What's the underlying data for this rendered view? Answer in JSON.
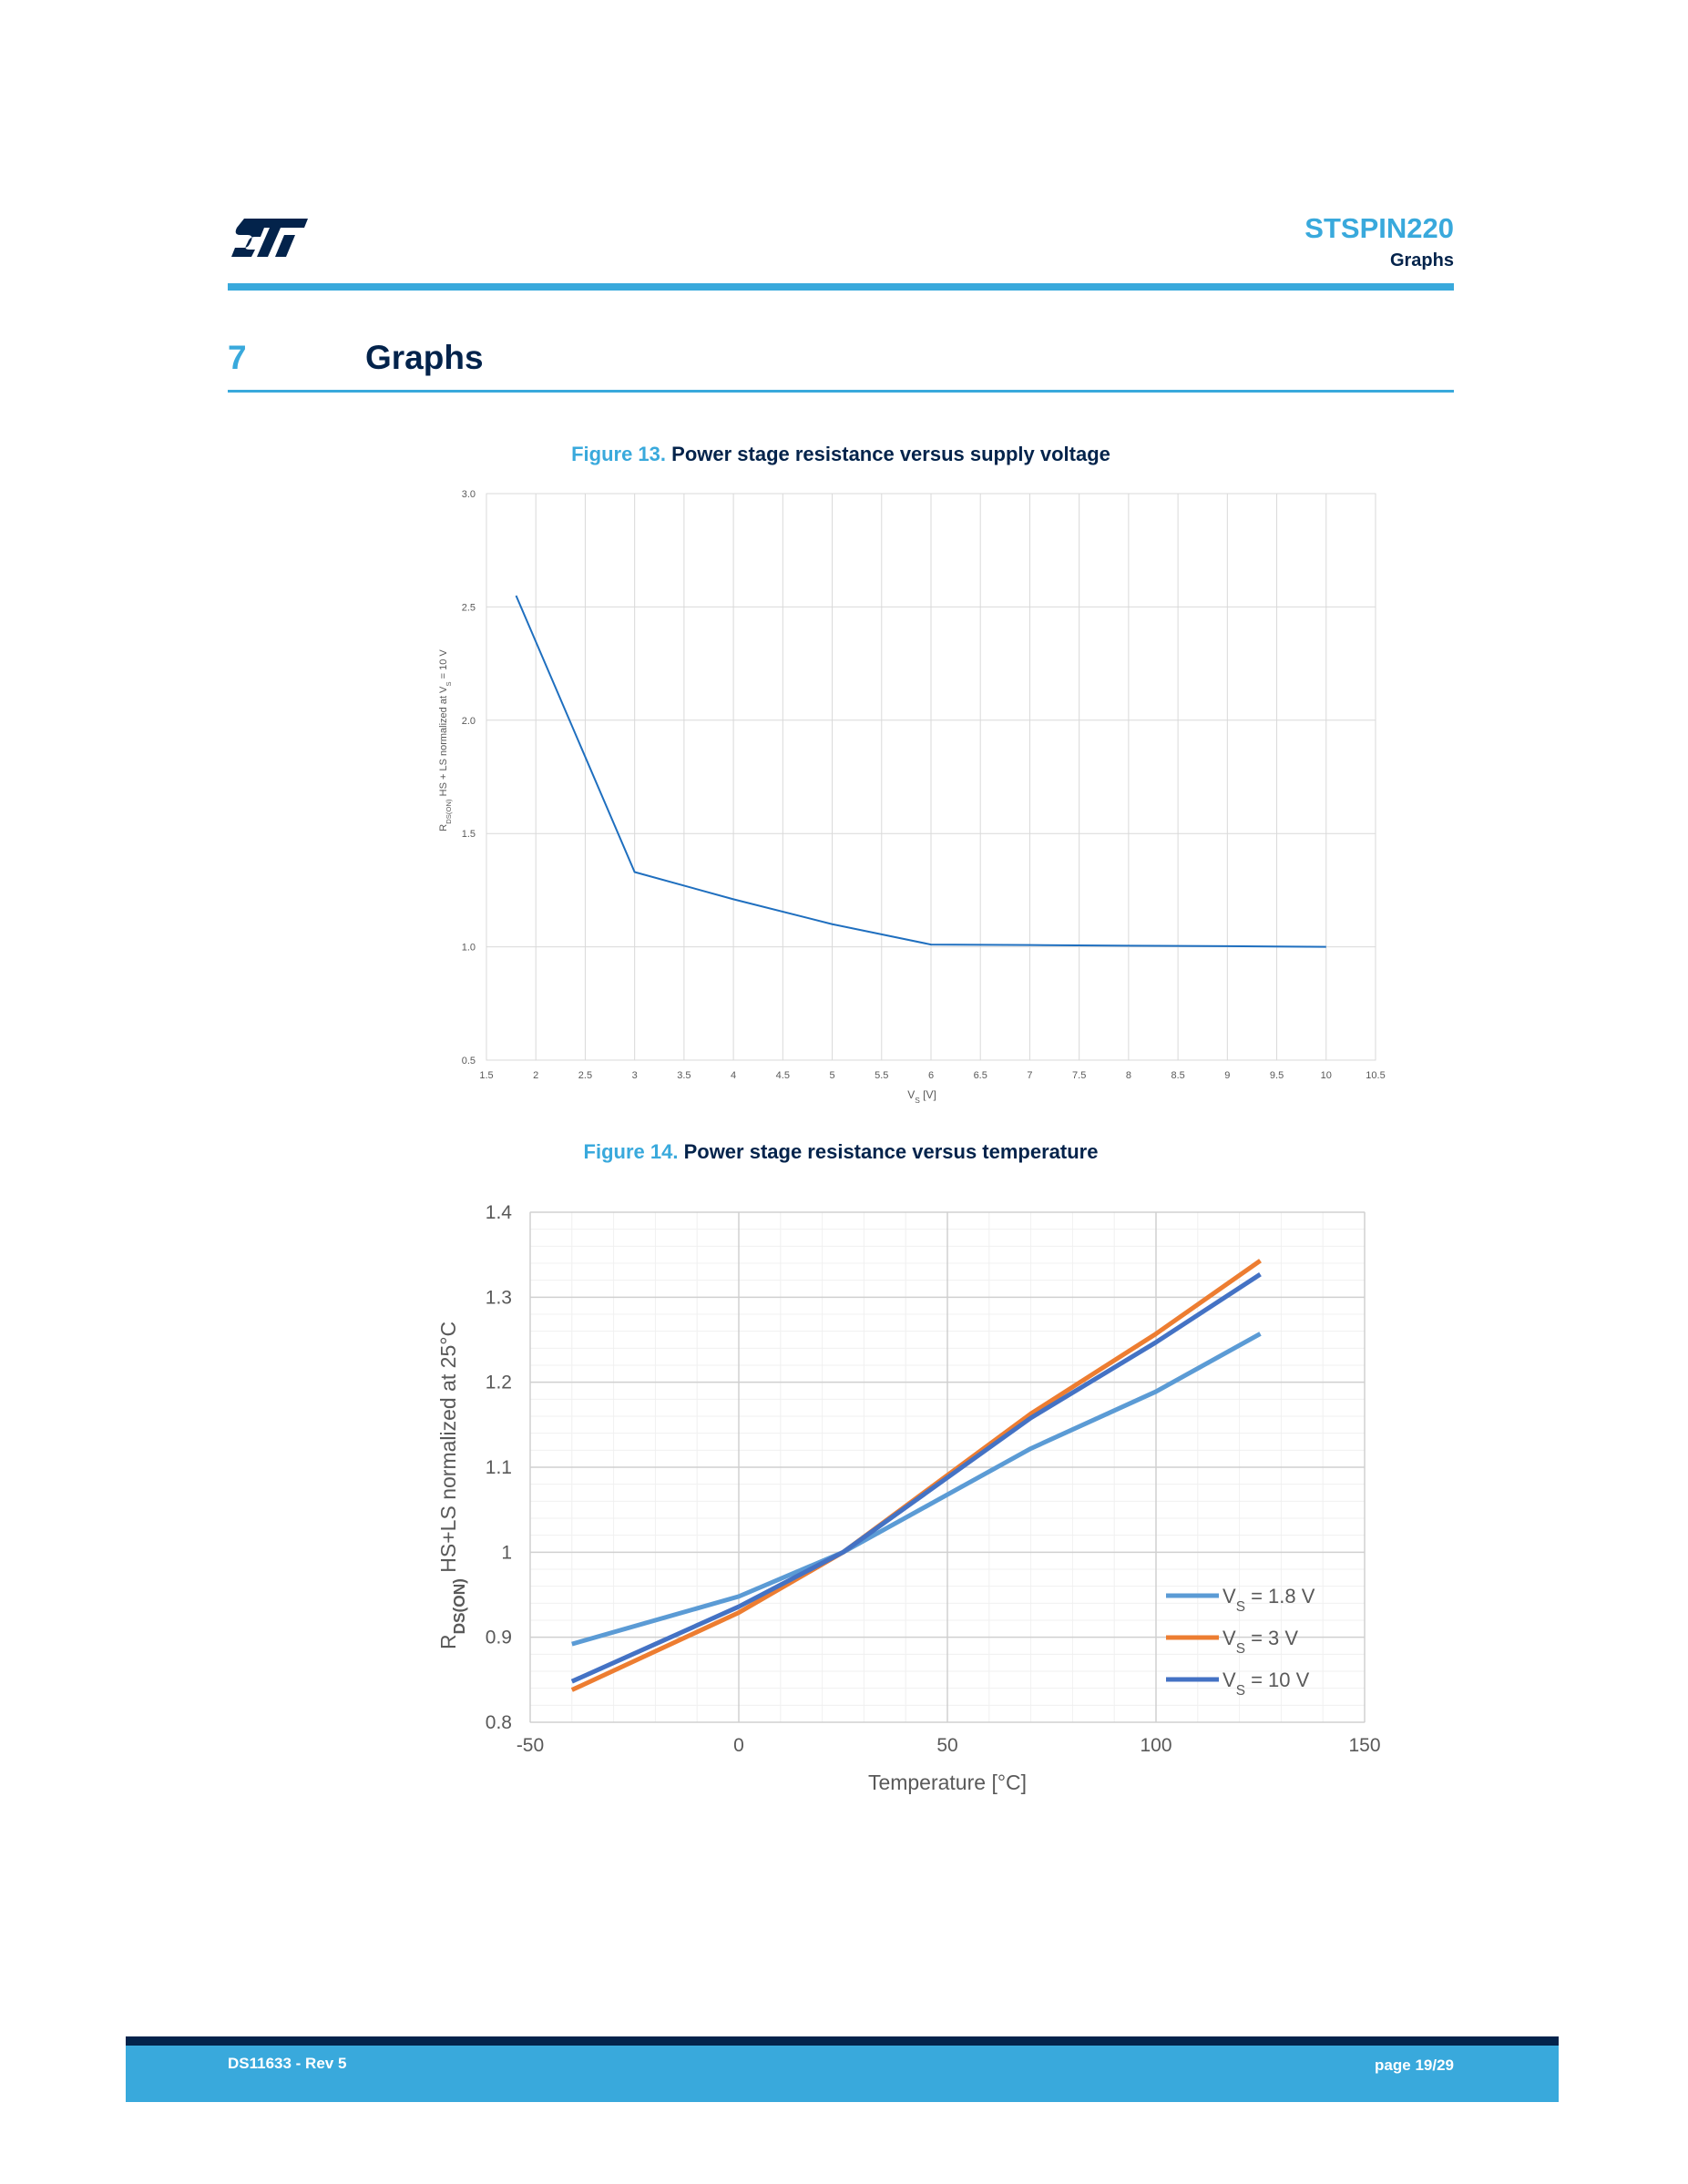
{
  "header": {
    "product": "STSPIN220",
    "section": "Graphs"
  },
  "section": {
    "number": "7",
    "title": "Graphs"
  },
  "figure13": {
    "label": "Figure 13.",
    "title": "Power stage resistance versus supply voltage"
  },
  "figure14": {
    "label": "Figure 14.",
    "title": "Power stage resistance versus temperature"
  },
  "footer": {
    "doc_id": "DS11633 - Rev 5",
    "page": "page 19/29"
  },
  "colors": {
    "brand_light_blue": "#39a9dc",
    "brand_dark_blue": "#03234b"
  },
  "chart_data": [
    {
      "type": "line",
      "title": "",
      "xlabel": "VS [V]",
      "ylabel": "RDS(ON) HS + LS normalized at VS = 10 V",
      "xlim": [
        1.5,
        10.5
      ],
      "ylim": [
        0.5,
        3.0
      ],
      "x_ticks": [
        "1.5",
        "2",
        "2.5",
        "3",
        "3.5",
        "4",
        "4.5",
        "5",
        "5.5",
        "6",
        "6.5",
        "7",
        "7.5",
        "8",
        "8.5",
        "9",
        "9.5",
        "10",
        "10.5"
      ],
      "y_ticks": [
        "0.5",
        "1.0",
        "1.5",
        "2.0",
        "2.5",
        "3.0"
      ],
      "grid": true,
      "series": [
        {
          "color": "#1f6fbf",
          "x": [
            1.8,
            3,
            4,
            5,
            6,
            7,
            8,
            9,
            10
          ],
          "y": [
            2.55,
            1.33,
            1.21,
            1.1,
            1.01,
            1.008,
            1.005,
            1.003,
            1.0
          ]
        }
      ]
    },
    {
      "type": "line",
      "title": "",
      "xlabel": "Temperature [°C]",
      "ylabel": "RDS(ON) HS+LS normalized at 25°C",
      "xlim": [
        -50,
        150
      ],
      "ylim": [
        0.8,
        1.4
      ],
      "x_ticks": [
        "-50",
        "0",
        "50",
        "100",
        "150"
      ],
      "y_ticks": [
        "0.8",
        "0.9",
        "1",
        "1.1",
        "1.2",
        "1.3",
        "1.4"
      ],
      "grid": true,
      "legend_position": "bottom-right",
      "series": [
        {
          "name": "VS = 1.8 V",
          "color": "#5b9bd5",
          "x": [
            -40,
            0,
            25,
            70,
            100,
            125
          ],
          "y": [
            0.892,
            0.948,
            1.0,
            1.122,
            1.189,
            1.257
          ]
        },
        {
          "name": "VS = 3 V",
          "color": "#ed7d31",
          "x": [
            -40,
            0,
            25,
            70,
            100,
            125
          ],
          "y": [
            0.838,
            0.929,
            1.0,
            1.163,
            1.257,
            1.343
          ]
        },
        {
          "name": "VS = 10 V",
          "color": "#4472c4",
          "x": [
            -40,
            0,
            25,
            70,
            100,
            125
          ],
          "y": [
            0.848,
            0.936,
            1.0,
            1.158,
            1.247,
            1.327
          ]
        }
      ]
    }
  ]
}
